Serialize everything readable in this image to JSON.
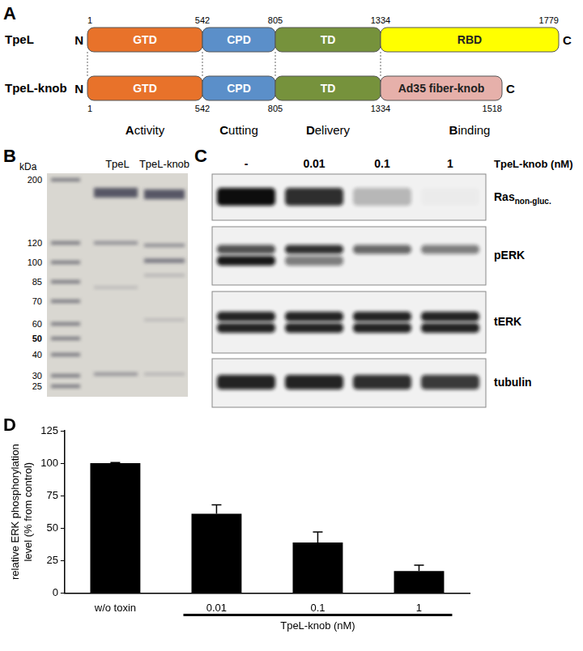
{
  "panel_a": {
    "panel_label": "A",
    "n_terminus": "N",
    "c_terminus": "C",
    "constructs": [
      {
        "name": "TpeL",
        "boundaries": [
          1,
          542,
          805,
          1334,
          1779
        ],
        "domains": [
          {
            "label": "GTD",
            "color": "#e8722a"
          },
          {
            "label": "CPD",
            "color": "#5b8fc9"
          },
          {
            "label": "TD",
            "color": "#76923c"
          },
          {
            "label": "RBD",
            "color": "#ffff00"
          }
        ]
      },
      {
        "name": "TpeL-knob",
        "boundaries": [
          1,
          542,
          805,
          1334,
          1518
        ],
        "domains": [
          {
            "label": "GTD",
            "color": "#e8722a"
          },
          {
            "label": "CPD",
            "color": "#5b8fc9"
          },
          {
            "label": "TD",
            "color": "#76923c"
          },
          {
            "label": "Ad35 fiber-knob",
            "color": "#e6b0aa"
          }
        ]
      }
    ],
    "functions": [
      "Activity",
      "Cutting",
      "Delivery",
      "Binding"
    ]
  },
  "panel_b": {
    "panel_label": "B",
    "unit_label": "kDa",
    "lanes": [
      "TpeL",
      "TpeL-knob"
    ],
    "markers": [
      200,
      120,
      100,
      85,
      70,
      60,
      50,
      40,
      30,
      25
    ],
    "emphasized_marker": 50
  },
  "panel_c": {
    "panel_label": "C",
    "lanes": [
      "-",
      0.01,
      0.1,
      1
    ],
    "treatment_label": "TpeL-knob (nM)",
    "rows": [
      {
        "label": "Ras",
        "subscript": "non-gluc."
      },
      {
        "label": "pERK"
      },
      {
        "label": "tERK"
      },
      {
        "label": "tubulin"
      }
    ]
  },
  "chart_data": {
    "type": "bar",
    "panel_label": "D",
    "categories": [
      "w/o toxin",
      "0.01",
      "0.1",
      "1"
    ],
    "values": [
      100,
      61,
      39,
      17
    ],
    "errors": [
      0.5,
      7,
      8,
      4.5
    ],
    "color": "#000000",
    "ylim": [
      0,
      125
    ],
    "yticks": [
      0,
      25,
      50,
      75,
      100,
      125
    ],
    "y_label": [
      "relative ERK phosphorylation",
      "level (% from control)"
    ],
    "annotations": [
      {
        "text": "TpeL-knob (nM)",
        "from": "0.01",
        "to": "1"
      }
    ],
    "grid": false
  }
}
